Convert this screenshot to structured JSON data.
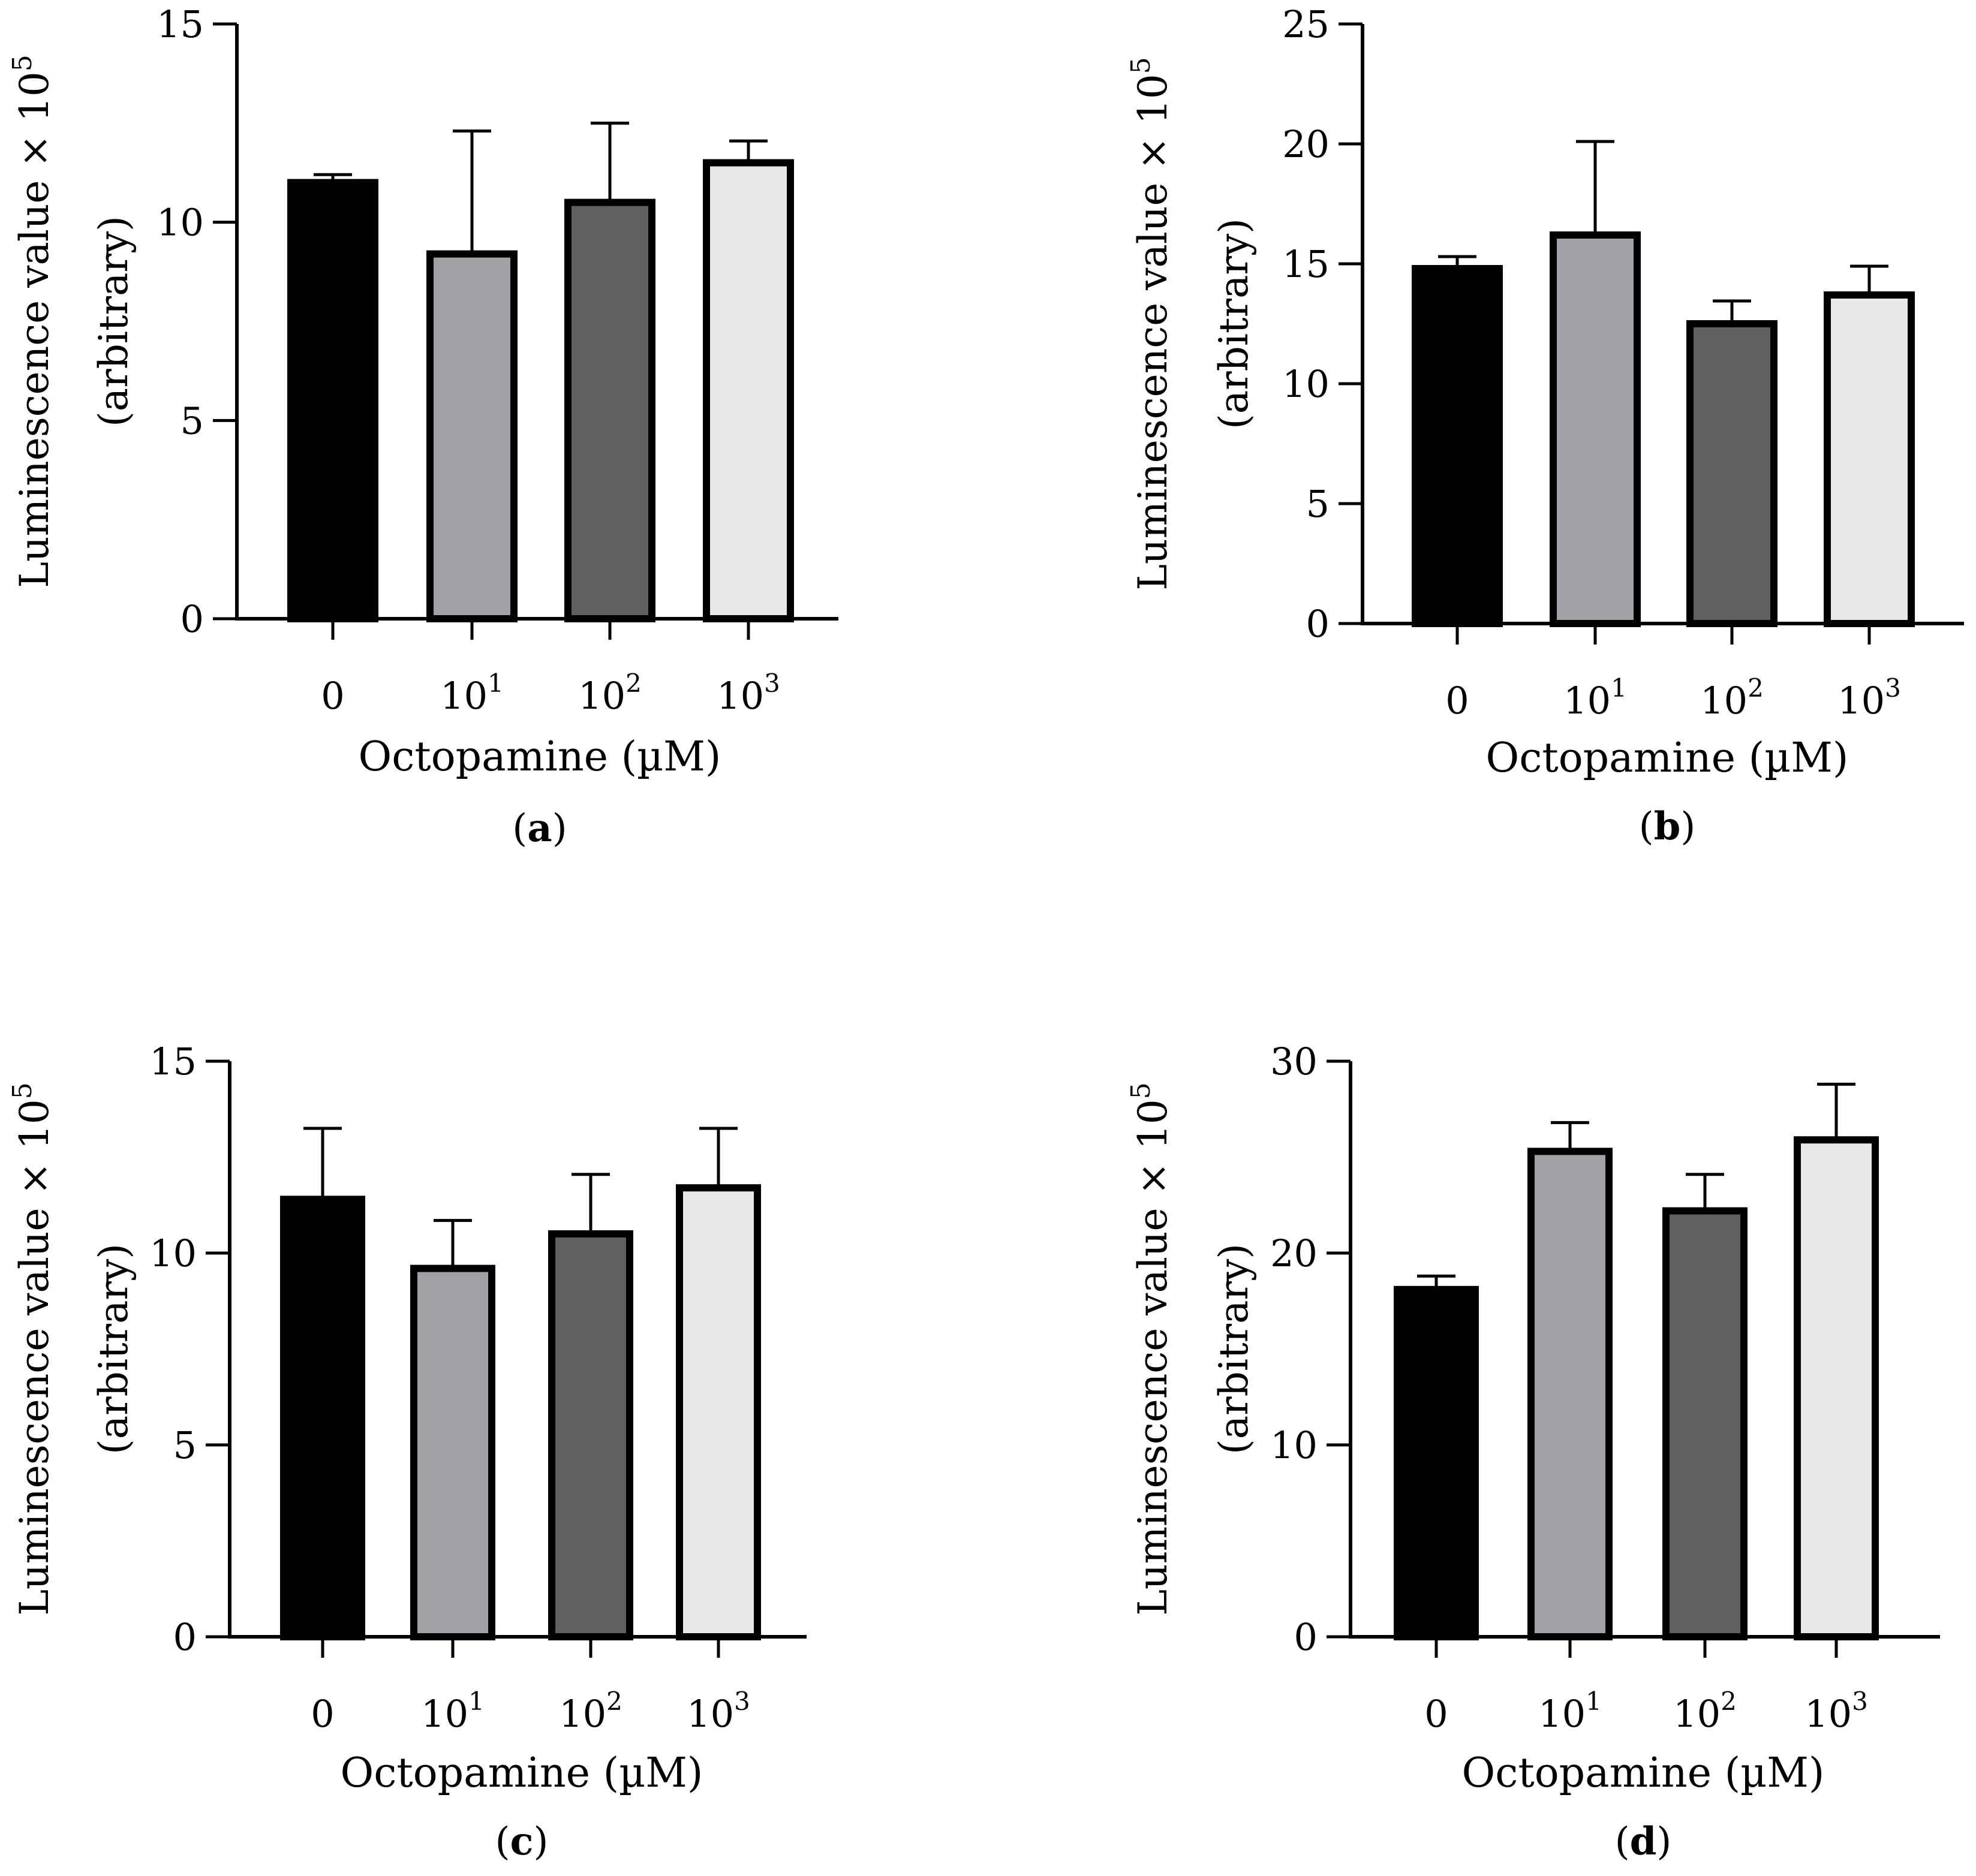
{
  "chart_data": [
    {
      "panel_label": "a",
      "type": "bar",
      "categories": [
        {
          "base": "0",
          "exp": ""
        },
        {
          "base": "10",
          "exp": "1"
        },
        {
          "base": "10",
          "exp": "2"
        },
        {
          "base": "10",
          "exp": "3"
        }
      ],
      "values": [
        11.0,
        9.2,
        10.5,
        11.5
      ],
      "errors": [
        0.2,
        3.1,
        2.0,
        0.55
      ],
      "colors": [
        "#000000",
        "#a0a0a6",
        "#606060",
        "#e8e8e8"
      ],
      "xlabel": "Octopamine (µM)",
      "ylabel_line1": "Luminescence value × 10",
      "ylabel_exp": "5",
      "ylabel_line2": "(arbitrary)",
      "ylim": [
        0,
        15
      ],
      "yticks": [
        0,
        5,
        10,
        15
      ],
      "ytick_labels": [
        "0",
        "5",
        "10",
        "15"
      ]
    },
    {
      "panel_label": "b",
      "type": "bar",
      "categories": [
        {
          "base": "0",
          "exp": ""
        },
        {
          "base": "10",
          "exp": "1"
        },
        {
          "base": "10",
          "exp": "2"
        },
        {
          "base": "10",
          "exp": "3"
        }
      ],
      "values": [
        14.8,
        16.2,
        12.5,
        13.7
      ],
      "errors": [
        0.5,
        3.9,
        0.95,
        1.2
      ],
      "colors": [
        "#000000",
        "#a0a0a6",
        "#606060",
        "#e8e8e8"
      ],
      "xlabel": "Octopamine (µM)",
      "ylabel_line1": "Luminescence value × 10",
      "ylabel_exp": "5",
      "ylabel_line2": "(arbitrary)",
      "ylim": [
        0,
        25
      ],
      "yticks": [
        0,
        5,
        10,
        15,
        20,
        25
      ],
      "ytick_labels": [
        "0",
        "5",
        "10",
        "15",
        "20",
        "25"
      ]
    },
    {
      "panel_label": "c",
      "type": "bar",
      "categories": [
        {
          "base": "0",
          "exp": ""
        },
        {
          "base": "10",
          "exp": "1"
        },
        {
          "base": "10",
          "exp": "2"
        },
        {
          "base": "10",
          "exp": "3"
        }
      ],
      "values": [
        11.4,
        9.6,
        10.5,
        11.7
      ],
      "errors": [
        1.85,
        1.25,
        1.55,
        1.55
      ],
      "colors": [
        "#000000",
        "#a0a0a6",
        "#606060",
        "#e8e8e8"
      ],
      "xlabel": "Octopamine (µM)",
      "ylabel_line1": "Luminescence value × 10",
      "ylabel_exp": "5",
      "ylabel_line2": "(arbitrary)",
      "ylim": [
        0,
        15
      ],
      "yticks": [
        0,
        5,
        10,
        15
      ],
      "ytick_labels": [
        "0",
        "5",
        "10",
        "15"
      ]
    },
    {
      "panel_label": "d",
      "type": "bar",
      "categories": [
        {
          "base": "0",
          "exp": ""
        },
        {
          "base": "10",
          "exp": "1"
        },
        {
          "base": "10",
          "exp": "2"
        },
        {
          "base": "10",
          "exp": "3"
        }
      ],
      "values": [
        18.1,
        25.3,
        22.2,
        25.9
      ],
      "errors": [
        0.7,
        1.5,
        1.9,
        2.9
      ],
      "colors": [
        "#000000",
        "#a0a0a6",
        "#606060",
        "#e8e8e8"
      ],
      "xlabel": "Octopamine (µM)",
      "ylabel_line1": "Luminescence value × 10",
      "ylabel_exp": "5",
      "ylabel_line2": "(arbitrary)",
      "ylim": [
        0,
        30
      ],
      "yticks": [
        0,
        10,
        20,
        30
      ],
      "ytick_labels": [
        "0",
        "10",
        "20",
        "30"
      ]
    }
  ]
}
